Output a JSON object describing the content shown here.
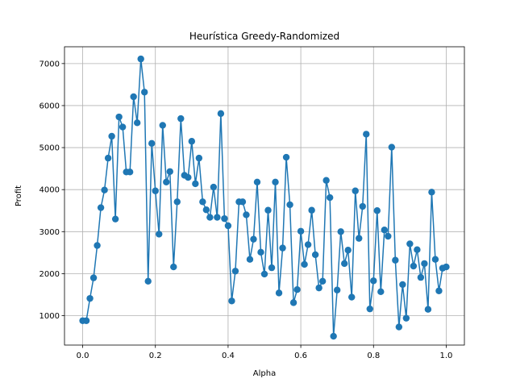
{
  "chart_data": {
    "type": "line",
    "title": "Heurística Greedy-Randomized",
    "xlabel": "Alpha",
    "ylabel": "Profit",
    "xlim": [
      -0.05,
      1.05
    ],
    "ylim": [
      300,
      7400
    ],
    "xticks": [
      0.0,
      0.2,
      0.4,
      0.6,
      0.8,
      1.0
    ],
    "xtick_labels": [
      "0.0",
      "0.2",
      "0.4",
      "0.6",
      "0.8",
      "1.0"
    ],
    "yticks": [
      1000,
      2000,
      3000,
      4000,
      5000,
      6000,
      7000
    ],
    "ytick_labels": [
      "1000",
      "2000",
      "3000",
      "4000",
      "5000",
      "6000",
      "7000"
    ],
    "grid": true,
    "marker": "circle",
    "color": "#1f77b4",
    "series": [
      {
        "x": [
          0.0,
          0.01,
          0.02,
          0.03,
          0.04,
          0.05,
          0.06,
          0.07,
          0.08,
          0.09,
          0.1,
          0.11,
          0.12,
          0.13,
          0.14,
          0.15,
          0.16,
          0.17,
          0.18,
          0.19,
          0.2,
          0.21,
          0.22,
          0.23,
          0.24,
          0.25,
          0.26,
          0.27,
          0.28,
          0.29,
          0.3,
          0.31,
          0.32,
          0.33,
          0.34,
          0.35,
          0.36,
          0.37,
          0.38,
          0.39,
          0.4,
          0.41,
          0.42,
          0.43,
          0.44,
          0.45,
          0.46,
          0.47,
          0.48,
          0.49,
          0.5,
          0.51,
          0.52,
          0.53,
          0.54,
          0.55,
          0.56,
          0.57,
          0.58,
          0.59,
          0.6,
          0.61,
          0.62,
          0.63,
          0.64,
          0.65,
          0.66,
          0.67,
          0.68,
          0.69,
          0.7,
          0.71,
          0.72,
          0.73,
          0.74,
          0.75,
          0.76,
          0.77,
          0.78,
          0.79,
          0.8,
          0.81,
          0.82,
          0.83,
          0.84,
          0.85,
          0.86,
          0.87,
          0.88,
          0.89,
          0.9,
          0.91,
          0.92,
          0.93,
          0.94,
          0.95,
          0.96,
          0.97,
          0.98,
          0.99,
          1.0
        ],
        "y": [
          880,
          880,
          1410,
          1900,
          2670,
          3570,
          3990,
          4750,
          5270,
          3300,
          5730,
          5490,
          4420,
          4420,
          6210,
          5590,
          7110,
          6320,
          1820,
          5100,
          3970,
          2940,
          5530,
          4180,
          4430,
          2160,
          3710,
          5690,
          4340,
          4290,
          5150,
          4140,
          4750,
          3710,
          3520,
          3340,
          4060,
          3340,
          5810,
          3310,
          3140,
          1350,
          2060,
          3710,
          3710,
          3400,
          2340,
          2820,
          4180,
          2510,
          1990,
          3510,
          2140,
          4180,
          1540,
          2610,
          4770,
          3640,
          1310,
          1620,
          3010,
          2220,
          2690,
          3510,
          2450,
          1660,
          1820,
          4220,
          3810,
          510,
          1610,
          3000,
          2240,
          2560,
          1440,
          3970,
          2840,
          3600,
          5320,
          1160,
          1830,
          3500,
          1570,
          3040,
          2890,
          5010,
          2320,
          730,
          1740,
          940,
          2710,
          2180,
          2570,
          1910,
          2240,
          1150,
          3940,
          2340,
          1590,
          2130,
          2160
        ]
      }
    ]
  }
}
